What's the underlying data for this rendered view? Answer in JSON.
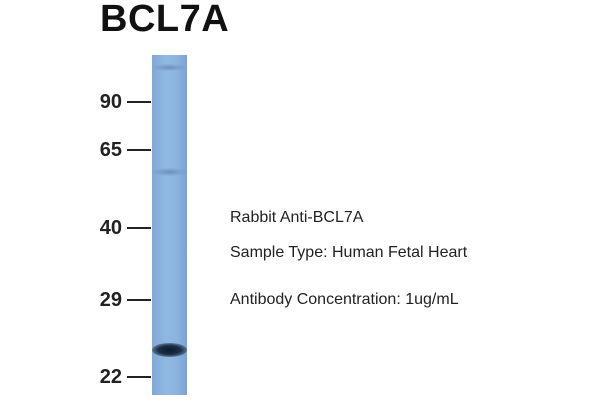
{
  "title": "BCL7A",
  "markers": [
    "90",
    "65",
    "40",
    "29",
    "22"
  ],
  "annotations": [
    "Rabbit Anti-BCL7A",
    "Sample Type: Human Fetal Heart",
    "Antibody Concentration: 1ug/mL"
  ]
}
